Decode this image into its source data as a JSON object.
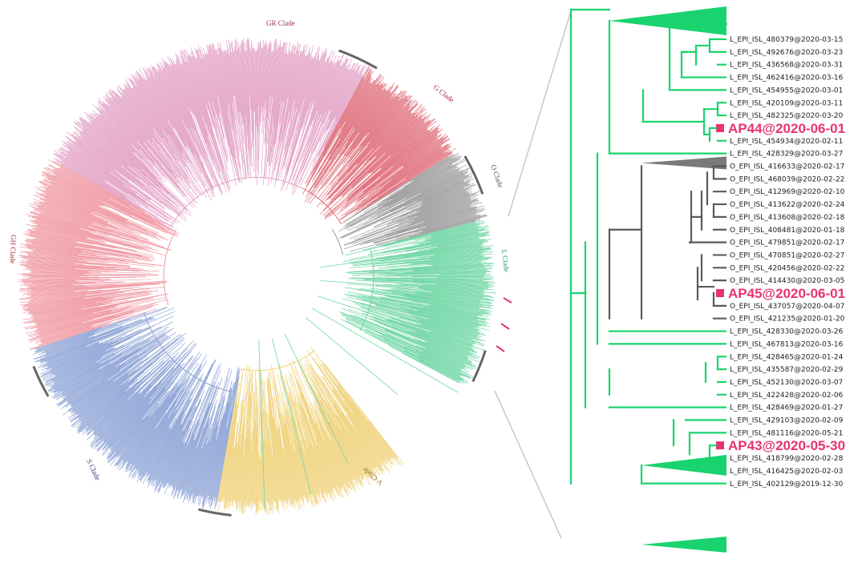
{
  "circular_tree": {
    "clades": [
      {
        "name": "GR Clade",
        "color": "#9a2f6a",
        "branch_color": "#e3a2c6"
      },
      {
        "name": "G Clade",
        "color": "#9a2636",
        "branch_color": "#e0707c"
      },
      {
        "name": "O Clade",
        "color": "#555555",
        "branch_color": "#9c9c9c"
      },
      {
        "name": "L Clade",
        "color": "#1a9a6a",
        "branch_color": "#6fd6a4"
      },
      {
        "name": "V Clade",
        "color": "#8a7020",
        "branch_color": "#f0d27a"
      },
      {
        "name": "S Clade",
        "color": "#2d3f7a",
        "branch_color": "#8ea4d6"
      },
      {
        "name": "GH Clade",
        "color": "#a8303a",
        "branch_color": "#f09aa4"
      }
    ],
    "marker_color": "#e8336f"
  },
  "detail_tree": {
    "branch_colors": {
      "L": "#19d36e",
      "O": "#5a5a5a"
    },
    "leaves": [
      {
        "label": "L_EPI_ISL_480379@2020-03-15",
        "group": "L"
      },
      {
        "label": "L_EPI_ISL_492676@2020-03-23",
        "group": "L"
      },
      {
        "label": "L_EPI_ISL_436568@2020-03-31",
        "group": "L"
      },
      {
        "label": "L_EPI_ISL_462416@2020-03-16",
        "group": "L"
      },
      {
        "label": "L_EPI_ISL_454955@2020-03-01",
        "group": "L"
      },
      {
        "label": "L_EPI_ISL_420109@2020-03-11",
        "group": "L"
      },
      {
        "label": "L_EPI_ISL_482325@2020-03-20",
        "group": "L"
      },
      {
        "label": "AP44@2020-06-01",
        "group": "sample"
      },
      {
        "label": "L_EPI_ISL_454934@2020-02-11",
        "group": "L"
      },
      {
        "label": "L_EPI_ISL_428329@2020-03-27",
        "group": "L"
      },
      {
        "label": "O_EPI_ISL_416633@2020-02-17",
        "group": "O"
      },
      {
        "label": "O_EPI_ISL_468039@2020-02-22",
        "group": "O"
      },
      {
        "label": "O_EPI_ISL_412969@2020-02-10",
        "group": "O"
      },
      {
        "label": "O_EPI_ISL_413622@2020-02-24",
        "group": "O"
      },
      {
        "label": "O_EPI_ISL_413608@2020-02-18",
        "group": "O"
      },
      {
        "label": "O_EPI_ISL_408481@2020-01-18",
        "group": "O"
      },
      {
        "label": "O_EPI_ISL_479851@2020-02-17",
        "group": "O"
      },
      {
        "label": "O_EPI_ISL_470851@2020-02-27",
        "group": "O"
      },
      {
        "label": "O_EPI_ISL_420456@2020-02-22",
        "group": "O"
      },
      {
        "label": "O_EPI_ISL_414430@2020-03-05",
        "group": "O"
      },
      {
        "label": "AP45@2020-06-01",
        "group": "sample"
      },
      {
        "label": "O_EPI_ISL_437057@2020-04-07",
        "group": "O"
      },
      {
        "label": "O_EPI_ISL_421235@2020-01-20",
        "group": "O"
      },
      {
        "label": "L_EPI_ISL_428330@2020-03-26",
        "group": "L"
      },
      {
        "label": "L_EPI_ISL_467813@2020-03-16",
        "group": "L"
      },
      {
        "label": "L_EPI_ISL_428465@2020-01-24",
        "group": "L"
      },
      {
        "label": "L_EPI_ISL_435587@2020-02-29",
        "group": "L"
      },
      {
        "label": "L_EPI_ISL_452130@2020-03-07",
        "group": "L"
      },
      {
        "label": "L_EPI_ISL_422428@2020-02-06",
        "group": "L"
      },
      {
        "label": "L_EPI_ISL_428469@2020-01-27",
        "group": "L"
      },
      {
        "label": "L_EPI_ISL_429103@2020-02-09",
        "group": "L"
      },
      {
        "label": "L_EPI_ISL_481116@2020-05-21",
        "group": "L"
      },
      {
        "label": "AP43@2020-05-30",
        "group": "sample"
      },
      {
        "label": "L_EPI_ISL_418799@2020-02-28",
        "group": "L"
      },
      {
        "label": "L_EPI_ISL_416425@2020-02-03",
        "group": "L"
      },
      {
        "label": "L_EPI_ISL_402129@2019-12-30",
        "group": "L"
      }
    ],
    "sample_color": "#e8336f"
  }
}
